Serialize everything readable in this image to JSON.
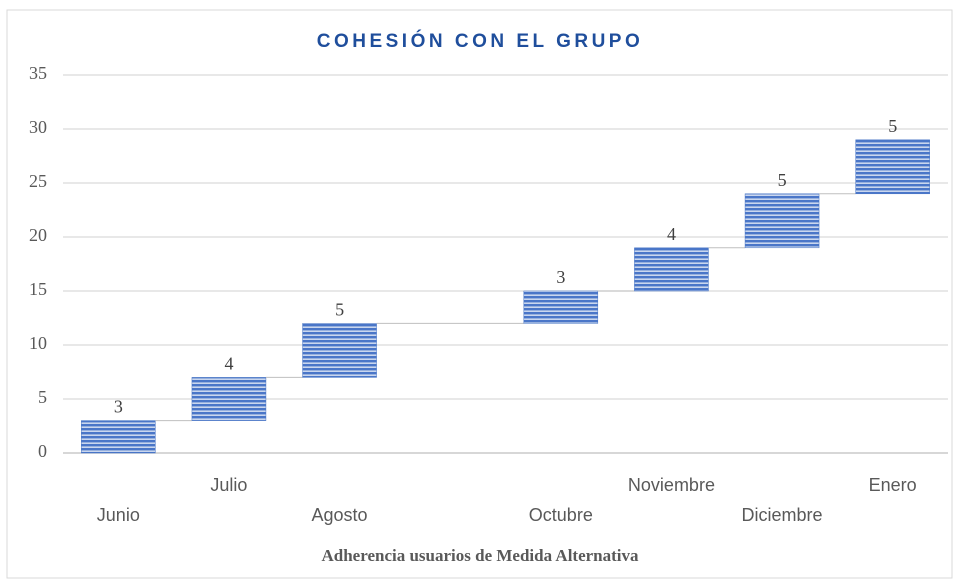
{
  "chart_data": {
    "type": "waterfall",
    "title": "COHESIÓN CON EL GRUPO",
    "x_label": "Adherencia usuarios de Medida Alternativa",
    "categories": [
      "Junio",
      "Julio",
      "Agosto",
      null,
      "Octubre",
      "Noviembre",
      "Diciembre",
      "Enero"
    ],
    "values": [
      3,
      4,
      5,
      null,
      3,
      4,
      5,
      5
    ],
    "color": "#4472c4",
    "ylim": [
      0,
      35
    ],
    "yticks": [
      0,
      5,
      10,
      15,
      20,
      25,
      30,
      35
    ],
    "grid": true
  }
}
